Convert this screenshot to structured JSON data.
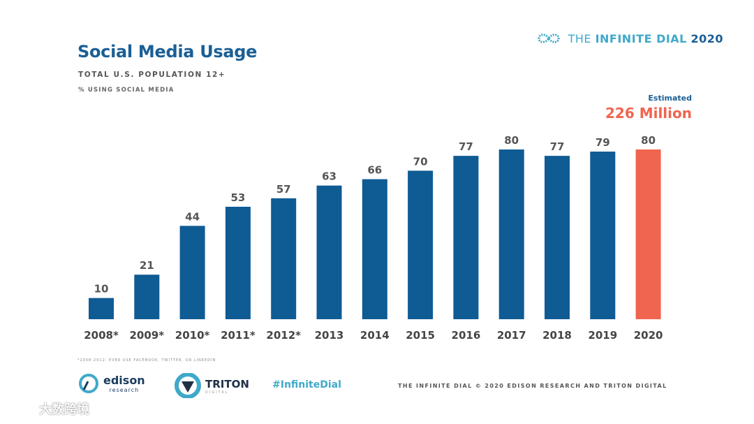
{
  "title": "Social Media Usage",
  "subtitle": "TOTAL U.S. POPULATION 12+",
  "measure_note": "% USING SOCIAL MEDIA",
  "brand": {
    "part1": "THE ",
    "part2": "INFINITE DIAL",
    "part3": "2020"
  },
  "callout": {
    "label": "Estimated",
    "value": "226 Million"
  },
  "footnote": "*2008-2012: EVER USE FACEBOOK, TWITTER, OR LINKEDIN",
  "logos": {
    "edison": {
      "name": "edison",
      "sub": "research"
    },
    "triton": {
      "name": "TRITON",
      "sub": "DIGITAL"
    }
  },
  "hashtag": "#InfiniteDial",
  "footer": "THE INFINITE DIAL   © 2020 EDISON RESEARCH AND TRITON DIGITAL",
  "watermark": "大数跨境",
  "colors": {
    "bar": "#0f5b94",
    "highlight": "#f0654f",
    "title": "#1a5f96",
    "accent": "#3fa9c9"
  },
  "chart_data": {
    "type": "bar",
    "title": "Social Media Usage",
    "categories": [
      "2008*",
      "2009*",
      "2010*",
      "2011*",
      "2012*",
      "2013",
      "2014",
      "2015",
      "2016",
      "2017",
      "2018",
      "2019",
      "2020"
    ],
    "values": [
      10,
      21,
      44,
      53,
      57,
      63,
      66,
      70,
      77,
      80,
      77,
      79,
      80
    ],
    "highlight_index": 12,
    "xlabel": "",
    "ylabel": "% using social media",
    "ylim": [
      0,
      80
    ],
    "grid": false,
    "data_labels": true
  }
}
